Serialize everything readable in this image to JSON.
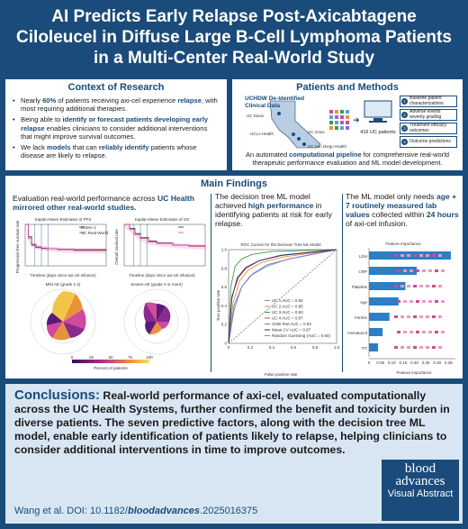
{
  "title": "AI Predicts Early Relapse Post-Axicabtagene Ciloleucel in Diffuse Large B-Cell Lymphoma Patients in a Multi-Center Real-World Study",
  "context": {
    "heading": "Context of Research",
    "b1a": "Nearly ",
    "b1b": "60%",
    "b1c": " of patients receiving axi-cel experience ",
    "b1d": "relapse",
    "b1e": ", with most requiring additional therapies.",
    "b2a": "Being able to ",
    "b2b": "identify or forecast patients developing early relapse",
    "b2c": " enables clinicians to consider additional interventions that might improve survival outcomes.",
    "b3a": "We lack ",
    "b3b": "models",
    "b3c": " that can ",
    "b3d": "reliably identify",
    "b3e": " patients whose disease are likely to relapse."
  },
  "methods": {
    "heading": "Patients and Methods",
    "source": "UCHDW De-Identified Clinical Data",
    "patients": "416 UC patients",
    "sites": [
      "UC Davis",
      "UCLA Health",
      "UC Irvine",
      "UC San Diego Health"
    ],
    "outputs": [
      "Baseline patient characterizations",
      "Adverse events severity grading",
      "Treatment efficacy outcomes",
      "Outcome predictions"
    ],
    "caption_a": "An automated ",
    "caption_b": "computational pipeline",
    "caption_c": " for comprehensive real-world therapeutic performance evaluation and ML model development."
  },
  "findings": {
    "heading": "Main Findings",
    "col1_a": "Evaluation real-world performance across ",
    "col1_b": "UC Health mirrored other real-world studies.",
    "km1_title": "Kaplan-Meier Estimates of PFS",
    "km2_title": "Kaplan-Meier Estimates of OS",
    "km_xlabel": "Timeline (days since axi-cel infusion)",
    "km1_ylabel": "Progression-free survival rate",
    "km2_ylabel": "Overall survival rate",
    "km_legend": [
      "ZUMA-1",
      "UC Real-World"
    ],
    "radar1_title": "Mild AE (grade 1-2)",
    "radar2_title": "Severe AE (grade 3 or more)",
    "pct_label": "Percent of patients",
    "pct_ticks": [
      "0",
      "25",
      "50",
      "75",
      "100"
    ],
    "col2_a": "The decision tree ML model achieved ",
    "col2_b": "high performance",
    "col2_c": " in identifying patients at risk for early relapse.",
    "roc_title": "ROC Curves for the Decision Tree ML Model",
    "roc_xlabel": "False positive rate",
    "roc_ylabel": "True positive rate",
    "roc_legend": [
      "UC 1 AUC = 0.82",
      "UC 2 AUC = 0.85",
      "UC 3 AUC = 0.93",
      "UC 4 AUC = 0.87",
      "OOB Test AUC = 0.83",
      "Mean CV AUC = 0.87",
      "Random Guessing (AUC = 0.50)"
    ],
    "col3_a": "The ML model only needs ",
    "col3_b": "age + 7 routinely measured lab values",
    "col3_c": " collected within ",
    "col3_d": "24 hours",
    "col3_e": " of axi-cel infusion.",
    "fi_title": "Feature Importance",
    "fi_xlabel": "Feature importance"
  },
  "chart_data": [
    {
      "type": "bar",
      "title": "Feature Importance",
      "xlabel": "Feature importance",
      "ylabel": "",
      "categories": [
        "LDH",
        "CRP",
        "Platelets",
        "Age",
        "Ferritin",
        "Hematocrit",
        "PT"
      ],
      "values": [
        0.36,
        0.21,
        0.16,
        0.13,
        0.09,
        0.06,
        0.04
      ],
      "ticks": [
        "0",
        "0.05",
        "0.10",
        "0.15",
        "0.20",
        "0.25",
        "0.30",
        "0.35"
      ],
      "xlim": [
        0,
        0.38
      ]
    },
    {
      "type": "line",
      "title": "ROC Curves for the Decision Tree ML Model",
      "xlabel": "False positive rate",
      "ylabel": "True positive rate",
      "xlim": [
        0,
        1
      ],
      "ylim": [
        0,
        1
      ],
      "ticks": [
        "0",
        "0.2",
        "0.4",
        "0.6",
        "0.8",
        "1.0"
      ],
      "series": [
        {
          "name": "UC 1 AUC = 0.82",
          "color": "#5aa0d8",
          "x": [
            0,
            0.05,
            0.12,
            0.2,
            0.35,
            0.55,
            1
          ],
          "y": [
            0,
            0.35,
            0.6,
            0.72,
            0.82,
            0.9,
            1
          ]
        },
        {
          "name": "UC 2 AUC = 0.85",
          "color": "#e8923a",
          "x": [
            0,
            0.04,
            0.1,
            0.18,
            0.3,
            0.5,
            1
          ],
          "y": [
            0,
            0.42,
            0.66,
            0.78,
            0.86,
            0.92,
            1
          ]
        },
        {
          "name": "UC 3 AUC = 0.93",
          "color": "#3f9b4a",
          "x": [
            0,
            0.02,
            0.06,
            0.12,
            0.22,
            0.4,
            1
          ],
          "y": [
            0,
            0.6,
            0.82,
            0.9,
            0.95,
            0.98,
            1
          ]
        },
        {
          "name": "UC 4 AUC = 0.87",
          "color": "#d24b4b",
          "x": [
            0,
            0.03,
            0.09,
            0.16,
            0.28,
            0.48,
            1
          ],
          "y": [
            0,
            0.5,
            0.7,
            0.8,
            0.88,
            0.94,
            1
          ]
        },
        {
          "name": "OOB Test AUC = 0.83",
          "color": "#8e6cbf",
          "x": [
            0,
            0.05,
            0.12,
            0.22,
            0.36,
            0.56,
            1
          ],
          "y": [
            0,
            0.4,
            0.6,
            0.74,
            0.84,
            0.9,
            1
          ]
        },
        {
          "name": "Mean CV AUC = 0.87",
          "color": "#1f2f6b",
          "x": [
            0,
            0.03,
            0.08,
            0.16,
            0.28,
            0.5,
            1
          ],
          "y": [
            0,
            0.48,
            0.7,
            0.81,
            0.88,
            0.94,
            1
          ]
        },
        {
          "name": "Random Guessing (AUC = 0.50)",
          "color": "#888888",
          "x": [
            0,
            1
          ],
          "y": [
            0,
            1
          ]
        }
      ]
    },
    {
      "type": "line",
      "title": "Kaplan-Meier Estimates of PFS",
      "xlabel": "Timeline (days since axi-cel infusion)",
      "ylabel": "Progression-free survival rate",
      "xlim": [
        0,
        1500
      ],
      "ylim": [
        0,
        1
      ],
      "series": [
        {
          "name": "ZUMA-1",
          "color": "#222222",
          "x": [
            0,
            60,
            120,
            200,
            300,
            400,
            600,
            900,
            1500
          ],
          "y": [
            1,
            0.7,
            0.5,
            0.44,
            0.42,
            0.41,
            0.4,
            0.39,
            0.38
          ]
        },
        {
          "name": "UC Real-World",
          "color": "#d1489c",
          "x": [
            0,
            60,
            120,
            200,
            300,
            400,
            600,
            900,
            1500
          ],
          "y": [
            1,
            0.66,
            0.52,
            0.46,
            0.43,
            0.41,
            0.39,
            0.37,
            0.36
          ]
        }
      ]
    },
    {
      "type": "line",
      "title": "Kaplan-Meier Estimates of OS",
      "xlabel": "Timeline (days since axi-cel infusion)",
      "ylabel": "Overall survival rate",
      "xlim": [
        0,
        1500
      ],
      "ylim": [
        0,
        1
      ],
      "series": [
        {
          "name": "ZUMA-1",
          "color": "#222222",
          "x": [
            0,
            100,
            200,
            300,
            450,
            600,
            900,
            1200,
            1500
          ],
          "y": [
            1,
            0.9,
            0.78,
            0.68,
            0.6,
            0.55,
            0.5,
            0.48,
            0.46
          ]
        },
        {
          "name": "UC Real-World",
          "color": "#d1489c",
          "x": [
            0,
            100,
            200,
            300,
            450,
            600,
            900,
            1200,
            1500
          ],
          "y": [
            1,
            0.88,
            0.76,
            0.66,
            0.58,
            0.54,
            0.5,
            0.47,
            0.45
          ]
        }
      ]
    }
  ],
  "conclusion": {
    "label": "Conclusions:",
    "text": " Real-world performance of axi-cel, evaluated computationally across the UC Health Systems, further confirmed the benefit and toxicity burden in diverse patients. The seven predictive factors, along with the decision tree ML model, enable early identification of patients likely to relapse, helping clinicians to consider additional interventions in time to improve outcomes.",
    "doi_a": "Wang et al. DOI: 10.1182/",
    "doi_b": "bloodadvances",
    "doi_c": ".2025016375",
    "logo_1": "blood",
    "logo_2": "advances",
    "logo_3": "Visual Abstract"
  }
}
